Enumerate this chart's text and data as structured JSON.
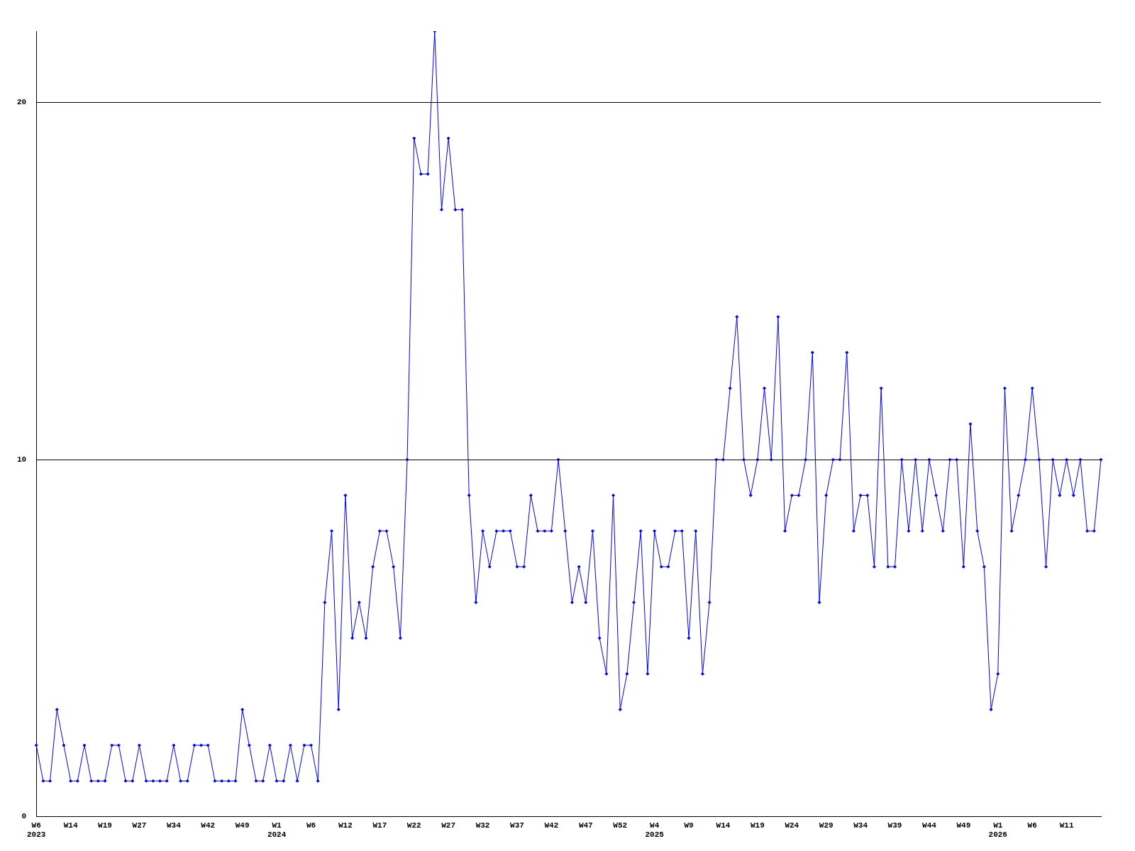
{
  "chart_data": {
    "type": "line",
    "categories": [
      "W6\n2023",
      null,
      null,
      null,
      null,
      "W14",
      null,
      null,
      null,
      null,
      "W19",
      null,
      null,
      null,
      null,
      "W27",
      null,
      null,
      null,
      null,
      "W34",
      null,
      null,
      null,
      null,
      "W42",
      null,
      null,
      null,
      null,
      "W49",
      null,
      null,
      null,
      null,
      "W1\n2024",
      null,
      null,
      null,
      null,
      "W6",
      null,
      null,
      null,
      null,
      "W12",
      null,
      null,
      null,
      null,
      "W17",
      null,
      null,
      null,
      null,
      "W22",
      null,
      null,
      null,
      null,
      "W27",
      null,
      null,
      null,
      null,
      "W32",
      null,
      null,
      null,
      null,
      "W37",
      null,
      null,
      null,
      null,
      "W42",
      null,
      null,
      null,
      null,
      "W47",
      null,
      null,
      null,
      null,
      "W52",
      null,
      null,
      null,
      null,
      "W4\n2025",
      null,
      null,
      null,
      null,
      "W9",
      null,
      null,
      null,
      null,
      "W14",
      null,
      null,
      null,
      null,
      "W19",
      null,
      null,
      null,
      null,
      "W24",
      null,
      null,
      null,
      null,
      "W29",
      null,
      null,
      null,
      null,
      "W34",
      null,
      null,
      null,
      null,
      "W39",
      null,
      null,
      null,
      null,
      "W44",
      null,
      null,
      null,
      null,
      "W49",
      null,
      null,
      null,
      null,
      "W1\n2026",
      null,
      null,
      null,
      null,
      "W6",
      null,
      null,
      null,
      null,
      "W11",
      null,
      null,
      null,
      null,
      null
    ],
    "series": [
      {
        "color": "#0000ff",
        "values": [
          2,
          1,
          1,
          3,
          2,
          1,
          1,
          2,
          1,
          1,
          1,
          2,
          2,
          1,
          1,
          2,
          1,
          1,
          1,
          1,
          2,
          1,
          1,
          2,
          2,
          2,
          1,
          1,
          1,
          1,
          3,
          2,
          1,
          1,
          2,
          1,
          1,
          2,
          1,
          2,
          2,
          1,
          6,
          8,
          3,
          9,
          5,
          6,
          5,
          7,
          8,
          8,
          7,
          5,
          10,
          19,
          18,
          18,
          22,
          17,
          19,
          17,
          17,
          9,
          6,
          8,
          7,
          8,
          8,
          8,
          7,
          7,
          9,
          8,
          8,
          8,
          10,
          8,
          6,
          7,
          6,
          8,
          5,
          4,
          9,
          3,
          4,
          6,
          8,
          4,
          8,
          7,
          7,
          8,
          8,
          5,
          8,
          4,
          6,
          10,
          10,
          12,
          14,
          10,
          9,
          10,
          12,
          10,
          14,
          8,
          9,
          9,
          10,
          13,
          6,
          9,
          10,
          10,
          13,
          8,
          9,
          9,
          7,
          12,
          7,
          7,
          10,
          8,
          10,
          8,
          10,
          9,
          8,
          10,
          10,
          7,
          11,
          8,
          7,
          3,
          4,
          12,
          8,
          9,
          10,
          12,
          10,
          7,
          10,
          9,
          10,
          9,
          10,
          8,
          8,
          10
        ]
      }
    ],
    "ylim": [
      0,
      22
    ],
    "yticks": [
      0,
      10,
      20
    ],
    "grid": "y",
    "legend": false,
    "marker": "diamond",
    "line_style": "solid"
  }
}
